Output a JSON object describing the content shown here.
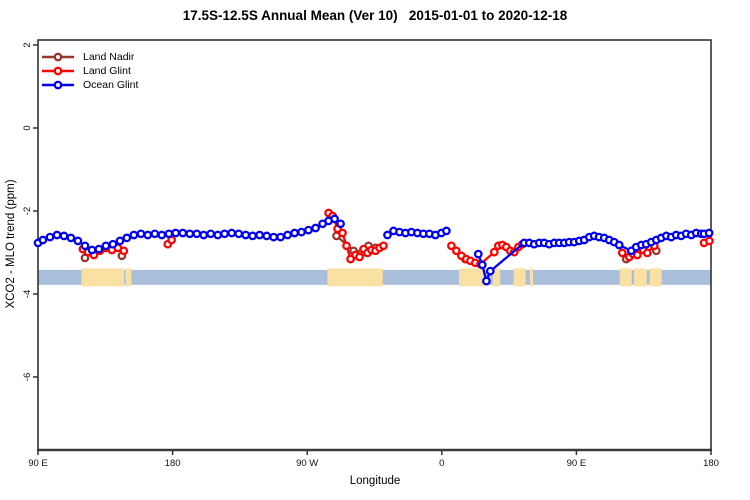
{
  "title": "17.5S-12.5S Annual Mean (Ver 10)   2015-01-01 to 2020-12-18",
  "axes": {
    "x": {
      "label": "Longitude",
      "ticks": [
        {
          "deg": 90,
          "label": "90 E"
        },
        {
          "deg": 180,
          "label": "180"
        },
        {
          "deg": 270,
          "label": "90 W"
        },
        {
          "deg": 360,
          "label": "0"
        },
        {
          "deg": 450,
          "label": "90 E"
        },
        {
          "deg": 540,
          "label": "180"
        }
      ]
    },
    "y": {
      "label": "XCO2 - MLO trend (ppm)",
      "ticks": [
        {
          "v": 2,
          "label": "2"
        },
        {
          "v": 0,
          "label": "0"
        },
        {
          "v": -2,
          "label": "-2"
        },
        {
          "v": -4,
          "label": "-4"
        },
        {
          "v": -6,
          "label": "-6"
        }
      ]
    }
  },
  "legend": {
    "items": [
      {
        "label": "Land Nadir",
        "color": "#9a372c"
      },
      {
        "label": "Land Glint",
        "color": "#ff0000"
      },
      {
        "label": "Ocean Glint",
        "color": "#0000ee"
      }
    ]
  },
  "colors": {
    "frame": "#333333",
    "tick_text": "#111111",
    "ocean_band": "#a9bedb",
    "land_band": "#fbe0a3"
  },
  "chart_data": {
    "type": "line",
    "title": "17.5S-12.5S Annual Mean (Ver 10)   2015-01-01 to 2020-12-18",
    "xlabel": "Longitude",
    "ylabel": "XCO2 - MLO trend (ppm)",
    "xlim": [
      90,
      540
    ],
    "ylim": [
      -7.76,
      2.12
    ],
    "grid": false,
    "legend_position": "top-left",
    "x_units": "degrees longitude along axis, wrapping 90E > 180 > 90W > 0 > 90E > 180",
    "map_strip": {
      "comment": "latitude-band map ribbon: ocean colored strip with land patches",
      "ppm_top": -3.42,
      "ppm_bottom": -3.78,
      "land_ranges_deg": [
        [
          119,
          147.5
        ],
        [
          148.5,
          152.5
        ],
        [
          283.5,
          320.5
        ],
        [
          371.5,
          389
        ],
        [
          394,
          399
        ],
        [
          408,
          416
        ],
        [
          419,
          421
        ],
        [
          479,
          487
        ],
        [
          488.5,
          497
        ],
        [
          499,
          507
        ]
      ]
    },
    "series": [
      {
        "name": "Land Nadir",
        "color": "#9a372c",
        "segments": [
          [
            [
              121.4,
              -3.13
            ]
          ],
          [
            [
              146.1,
              -3.08
            ]
          ],
          [
            [
              289.6,
              -2.6
            ],
            [
              301.0,
              -2.96
            ],
            [
              306.3,
              -3.01
            ],
            [
              311.0,
              -2.84
            ],
            [
              315.7,
              -2.89
            ]
          ],
          [
            [
              375.7,
              -3.16
            ]
          ],
          [
            [
              483.3,
              -3.16
            ]
          ],
          [
            [
              503.4,
              -2.96
            ]
          ]
        ]
      },
      {
        "name": "Land Glint",
        "color": "#ff0000",
        "segments": [
          [
            [
              120.0,
              -2.92
            ],
            [
              123.4,
              -2.99
            ],
            [
              127.4,
              -3.06
            ],
            [
              131.4,
              -2.96
            ],
            [
              135.4,
              -2.89
            ],
            [
              139.4,
              -2.94
            ],
            [
              143.4,
              -2.89
            ],
            [
              147.4,
              -2.96
            ]
          ],
          [
            [
              176.8,
              -2.8
            ],
            [
              179.3,
              -2.7
            ]
          ],
          [
            [
              284.3,
              -2.05
            ],
            [
              287.0,
              -2.12
            ],
            [
              290.3,
              -2.43
            ],
            [
              293.6,
              -2.53
            ],
            [
              296.3,
              -2.84
            ],
            [
              299.0,
              -3.16
            ],
            [
              302.3,
              -3.06
            ],
            [
              305.0,
              -3.11
            ],
            [
              307.7,
              -2.92
            ],
            [
              310.3,
              -3.01
            ],
            [
              313.0,
              -2.94
            ],
            [
              315.7,
              -2.96
            ],
            [
              318.4,
              -2.89
            ],
            [
              321.0,
              -2.84
            ]
          ],
          [
            [
              366.4,
              -2.84
            ],
            [
              369.7,
              -2.96
            ],
            [
              373.1,
              -3.08
            ],
            [
              376.4,
              -3.16
            ],
            [
              379.1,
              -3.2
            ],
            [
              382.4,
              -3.25
            ],
            [
              385.8,
              -3.28
            ],
            [
              395.1,
              -2.99
            ],
            [
              397.8,
              -2.84
            ],
            [
              400.5,
              -2.82
            ],
            [
              403.1,
              -2.87
            ],
            [
              405.8,
              -2.96
            ],
            [
              408.5,
              -2.99
            ],
            [
              411.2,
              -2.87
            ],
            [
              413.8,
              -2.8
            ]
          ],
          [
            [
              480.7,
              -3.01
            ],
            [
              485.4,
              -3.11
            ],
            [
              488.0,
              -3.04
            ],
            [
              490.7,
              -3.06
            ],
            [
              494.7,
              -2.94
            ],
            [
              497.4,
              -3.01
            ],
            [
              502.1,
              -2.84
            ]
          ],
          [
            [
              535.3,
              -2.77
            ],
            [
              538.9,
              -2.72
            ]
          ]
        ]
      },
      {
        "name": "Ocean Glint",
        "color": "#0000ee",
        "segments": [
          [
            [
              90.0,
              -2.77
            ],
            [
              93.3,
              -2.7
            ],
            [
              98.0,
              -2.63
            ],
            [
              102.7,
              -2.58
            ],
            [
              107.4,
              -2.6
            ],
            [
              112.0,
              -2.65
            ],
            [
              116.7,
              -2.72
            ],
            [
              121.4,
              -2.84
            ],
            [
              126.1,
              -2.94
            ],
            [
              130.7,
              -2.92
            ],
            [
              135.4,
              -2.84
            ],
            [
              140.1,
              -2.8
            ],
            [
              144.8,
              -2.72
            ],
            [
              149.4,
              -2.65
            ],
            [
              154.1,
              -2.58
            ],
            [
              158.8,
              -2.55
            ],
            [
              163.4,
              -2.58
            ],
            [
              168.1,
              -2.55
            ],
            [
              172.8,
              -2.58
            ],
            [
              177.5,
              -2.55
            ],
            [
              182.1,
              -2.53
            ],
            [
              186.8,
              -2.53
            ],
            [
              191.5,
              -2.55
            ],
            [
              196.2,
              -2.55
            ],
            [
              200.8,
              -2.58
            ],
            [
              205.5,
              -2.55
            ],
            [
              210.2,
              -2.58
            ],
            [
              214.8,
              -2.55
            ],
            [
              219.5,
              -2.53
            ],
            [
              224.2,
              -2.55
            ],
            [
              228.9,
              -2.58
            ],
            [
              233.5,
              -2.6
            ],
            [
              238.2,
              -2.58
            ],
            [
              242.9,
              -2.6
            ],
            [
              247.6,
              -2.63
            ],
            [
              252.2,
              -2.63
            ],
            [
              256.9,
              -2.58
            ],
            [
              261.6,
              -2.53
            ],
            [
              266.2,
              -2.51
            ],
            [
              270.9,
              -2.46
            ],
            [
              275.6,
              -2.41
            ],
            [
              280.3,
              -2.31
            ],
            [
              284.3,
              -2.24
            ],
            [
              288.3,
              -2.19
            ],
            [
              292.3,
              -2.31
            ]
          ],
          [
            [
              323.7,
              -2.58
            ],
            [
              327.7,
              -2.48
            ],
            [
              331.7,
              -2.51
            ],
            [
              335.7,
              -2.53
            ],
            [
              339.7,
              -2.51
            ],
            [
              343.7,
              -2.53
            ],
            [
              347.7,
              -2.55
            ],
            [
              351.7,
              -2.55
            ],
            [
              355.7,
              -2.58
            ],
            [
              359.7,
              -2.53
            ],
            [
              363.1,
              -2.48
            ]
          ],
          [
            [
              384.4,
              -3.04
            ],
            [
              387.1,
              -3.3
            ],
            [
              389.8,
              -3.69
            ],
            [
              392.4,
              -3.45
            ],
            [
              415.1,
              -2.77
            ],
            [
              418.5,
              -2.77
            ],
            [
              421.8,
              -2.8
            ],
            [
              425.2,
              -2.77
            ],
            [
              428.5,
              -2.77
            ],
            [
              431.8,
              -2.8
            ],
            [
              435.2,
              -2.77
            ],
            [
              438.5,
              -2.77
            ],
            [
              441.9,
              -2.77
            ],
            [
              445.2,
              -2.75
            ],
            [
              448.5,
              -2.75
            ],
            [
              451.9,
              -2.72
            ],
            [
              455.2,
              -2.7
            ],
            [
              458.6,
              -2.63
            ],
            [
              461.9,
              -2.6
            ],
            [
              465.2,
              -2.63
            ],
            [
              468.6,
              -2.65
            ],
            [
              471.9,
              -2.7
            ],
            [
              475.3,
              -2.75
            ],
            [
              478.6,
              -2.82
            ],
            [
              486.7,
              -2.96
            ],
            [
              490.0,
              -2.87
            ],
            [
              493.4,
              -2.82
            ],
            [
              496.7,
              -2.8
            ],
            [
              500.0,
              -2.75
            ],
            [
              503.4,
              -2.7
            ],
            [
              506.7,
              -2.65
            ],
            [
              510.1,
              -2.6
            ],
            [
              513.4,
              -2.63
            ],
            [
              516.7,
              -2.58
            ],
            [
              520.1,
              -2.6
            ],
            [
              523.4,
              -2.55
            ],
            [
              526.8,
              -2.58
            ],
            [
              530.1,
              -2.53
            ],
            [
              533.4,
              -2.55
            ],
            [
              535.3,
              -2.55
            ],
            [
              538.7,
              -2.53
            ]
          ]
        ]
      }
    ]
  }
}
